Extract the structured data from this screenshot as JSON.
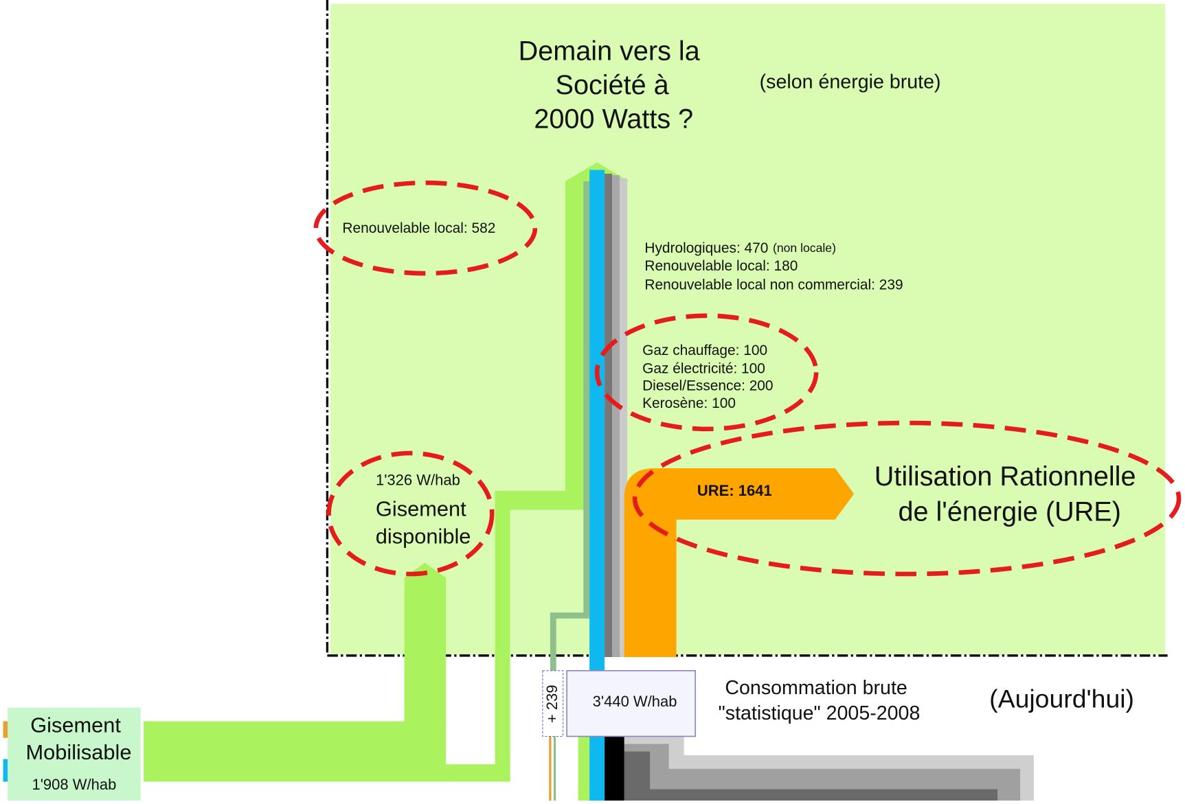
{
  "title": {
    "lines": [
      "Demain vers la",
      "Société à",
      "2000 Watts ?"
    ],
    "note": "(selon énergie brute)"
  },
  "labels": {
    "renewable_local": "Renouvelable local: 582",
    "hydro": "Hydrologiques: 470",
    "hydro_note": "(non locale)",
    "renewable_180": "Renouvelable local: 180",
    "renewable_noncommercial": "Renouvelable local non commercial: 239",
    "fossil": [
      "Gaz chauffage: 100",
      "Gaz électricité: 100",
      "Diesel/Essence: 200",
      "Kerosène: 100"
    ],
    "ure": "URE: 1641"
  },
  "gisement_disponible": {
    "value": "1'326 W/hab",
    "lines": [
      "Gisement",
      "disponible"
    ]
  },
  "ure_title": [
    "Utilisation Rationnelle",
    "de l'énergie (URE)"
  ],
  "today": {
    "extra": "+ 239",
    "consumption": "3'440 W/hab",
    "caption": [
      "Consommation brute",
      "\"statistique\" 2005-2008"
    ],
    "label": "(Aujourd'hui)"
  },
  "gisement_mobilisable": {
    "lines": [
      "Gisement",
      "Mobilisable"
    ],
    "value": "1'908 W/hab"
  }
}
